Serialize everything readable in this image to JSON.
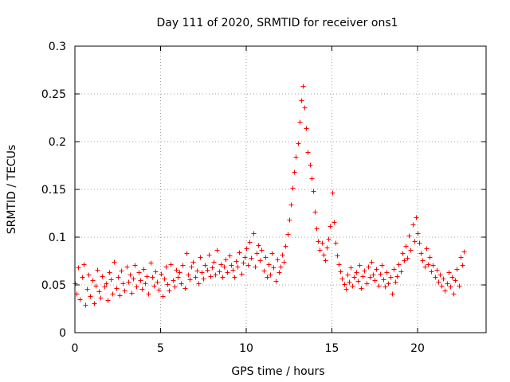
{
  "chart_data": {
    "type": "scatter",
    "title": "Day 111 of 2020, SRMTID for receiver ons1",
    "xlabel": "GPS time / hours",
    "ylabel": "SRMTID / TECUs",
    "xlim": [
      0,
      24
    ],
    "ylim": [
      0,
      0.3
    ],
    "grid": true,
    "marker": "+",
    "color": "#ff0000",
    "x_ticks": [
      0,
      5,
      10,
      15,
      20
    ],
    "x_tick_labels": [
      "0",
      "5",
      "10",
      "15",
      "20"
    ],
    "y_ticks": [
      0,
      0.05,
      0.1,
      0.15,
      0.2,
      0.25,
      0.3
    ],
    "y_tick_labels": [
      "0",
      "0.05",
      "0.1",
      "0.15",
      "0.2",
      "0.25",
      "0.3"
    ],
    "series": [
      {
        "name": "ons1",
        "x": [
          0.0,
          0.1,
          0.2,
          0.3,
          0.4,
          0.5,
          0.6,
          0.7,
          0.8,
          0.9,
          1.0,
          1.1,
          1.2,
          1.3,
          1.4,
          1.5,
          1.6,
          1.7,
          1.8,
          1.9,
          2.0,
          2.1,
          2.2,
          2.3,
          2.4,
          2.5,
          2.6,
          2.7,
          2.8,
          2.9,
          3.0,
          3.1,
          3.2,
          3.3,
          3.4,
          3.5,
          3.6,
          3.7,
          3.8,
          3.9,
          4.0,
          4.1,
          4.2,
          4.3,
          4.4,
          4.5,
          4.6,
          4.7,
          4.8,
          4.9,
          5.0,
          5.1,
          5.2,
          5.3,
          5.4,
          5.5,
          5.6,
          5.7,
          5.8,
          5.9,
          6.0,
          6.1,
          6.2,
          6.3,
          6.4,
          6.5,
          6.6,
          6.7,
          6.8,
          6.9,
          7.0,
          7.1,
          7.2,
          7.3,
          7.4,
          7.5,
          7.6,
          7.7,
          7.8,
          7.9,
          8.0,
          8.1,
          8.2,
          8.3,
          8.4,
          8.5,
          8.6,
          8.7,
          8.8,
          8.9,
          9.0,
          9.1,
          9.2,
          9.3,
          9.4,
          9.5,
          9.6,
          9.7,
          9.8,
          9.9,
          10.0,
          10.1,
          10.2,
          10.3,
          10.4,
          10.5,
          10.6,
          10.7,
          10.8,
          10.9,
          11.0,
          11.1,
          11.2,
          11.3,
          11.4,
          11.5,
          11.6,
          11.7,
          11.8,
          11.9,
          12.0,
          12.1,
          12.2,
          12.3,
          12.4,
          12.5,
          12.6,
          12.7,
          12.8,
          12.9,
          13.0,
          13.1,
          13.2,
          13.3,
          13.4,
          13.5,
          13.6,
          13.7,
          13.8,
          13.9,
          14.0,
          14.1,
          14.2,
          14.3,
          14.4,
          14.5,
          14.6,
          14.7,
          14.8,
          14.9,
          15.0,
          15.1,
          15.2,
          15.3,
          15.4,
          15.5,
          15.6,
          15.7,
          15.8,
          15.9,
          16.0,
          16.1,
          16.2,
          16.3,
          16.4,
          16.5,
          16.6,
          16.7,
          16.8,
          16.9,
          17.0,
          17.1,
          17.2,
          17.3,
          17.4,
          17.5,
          17.6,
          17.7,
          17.8,
          17.9,
          18.0,
          18.1,
          18.2,
          18.3,
          18.4,
          18.5,
          18.6,
          18.7,
          18.8,
          18.9,
          19.0,
          19.1,
          19.2,
          19.3,
          19.4,
          19.5,
          19.6,
          19.7,
          19.8,
          19.9,
          20.0,
          20.1,
          20.2,
          20.3,
          20.4,
          20.5,
          20.6,
          20.7,
          20.8,
          20.9,
          21.0,
          21.1,
          21.2,
          21.3,
          21.4,
          21.5,
          21.6,
          21.7,
          21.8,
          21.9,
          22.0,
          22.1,
          22.2,
          22.3,
          22.4,
          22.5,
          22.6,
          22.7
        ],
        "y": [
          0.052,
          0.041,
          0.068,
          0.035,
          0.058,
          0.072,
          0.029,
          0.046,
          0.061,
          0.038,
          0.055,
          0.031,
          0.049,
          0.066,
          0.043,
          0.037,
          0.059,
          0.048,
          0.052,
          0.034,
          0.063,
          0.056,
          0.041,
          0.074,
          0.047,
          0.058,
          0.039,
          0.065,
          0.052,
          0.044,
          0.069,
          0.053,
          0.061,
          0.042,
          0.057,
          0.071,
          0.048,
          0.063,
          0.055,
          0.046,
          0.067,
          0.052,
          0.059,
          0.041,
          0.073,
          0.058,
          0.049,
          0.064,
          0.053,
          0.045,
          0.062,
          0.038,
          0.057,
          0.069,
          0.051,
          0.044,
          0.072,
          0.055,
          0.048,
          0.066,
          0.058,
          0.063,
          0.052,
          0.071,
          0.047,
          0.083,
          0.061,
          0.056,
          0.069,
          0.074,
          0.058,
          0.065,
          0.052,
          0.079,
          0.063,
          0.057,
          0.071,
          0.066,
          0.082,
          0.059,
          0.068,
          0.074,
          0.061,
          0.087,
          0.064,
          0.072,
          0.058,
          0.069,
          0.077,
          0.063,
          0.081,
          0.071,
          0.066,
          0.058,
          0.075,
          0.069,
          0.084,
          0.062,
          0.073,
          0.079,
          0.088,
          0.071,
          0.095,
          0.078,
          0.104,
          0.069,
          0.083,
          0.092,
          0.076,
          0.087,
          0.065,
          0.079,
          0.058,
          0.072,
          0.061,
          0.083,
          0.068,
          0.054,
          0.077,
          0.063,
          0.069,
          0.082,
          0.074,
          0.091,
          0.103,
          0.118,
          0.134,
          0.152,
          0.168,
          0.184,
          0.198,
          0.221,
          0.243,
          0.258,
          0.236,
          0.214,
          0.189,
          0.176,
          0.162,
          0.148,
          0.127,
          0.109,
          0.096,
          0.087,
          0.094,
          0.082,
          0.076,
          0.089,
          0.098,
          0.112,
          0.147,
          0.116,
          0.094,
          0.081,
          0.072,
          0.064,
          0.057,
          0.051,
          0.046,
          0.061,
          0.053,
          0.068,
          0.049,
          0.058,
          0.063,
          0.054,
          0.071,
          0.047,
          0.059,
          0.065,
          0.052,
          0.069,
          0.058,
          0.074,
          0.061,
          0.055,
          0.067,
          0.049,
          0.062,
          0.071,
          0.056,
          0.048,
          0.063,
          0.052,
          0.058,
          0.041,
          0.067,
          0.053,
          0.059,
          0.072,
          0.064,
          0.083,
          0.076,
          0.091,
          0.078,
          0.102,
          0.087,
          0.113,
          0.096,
          0.121,
          0.104,
          0.094,
          0.083,
          0.076,
          0.069,
          0.088,
          0.072,
          0.079,
          0.064,
          0.071,
          0.058,
          0.066,
          0.053,
          0.061,
          0.049,
          0.057,
          0.044,
          0.052,
          0.063,
          0.048,
          0.058,
          0.041,
          0.055,
          0.067,
          0.049,
          0.079,
          0.071,
          0.085
        ]
      }
    ]
  }
}
